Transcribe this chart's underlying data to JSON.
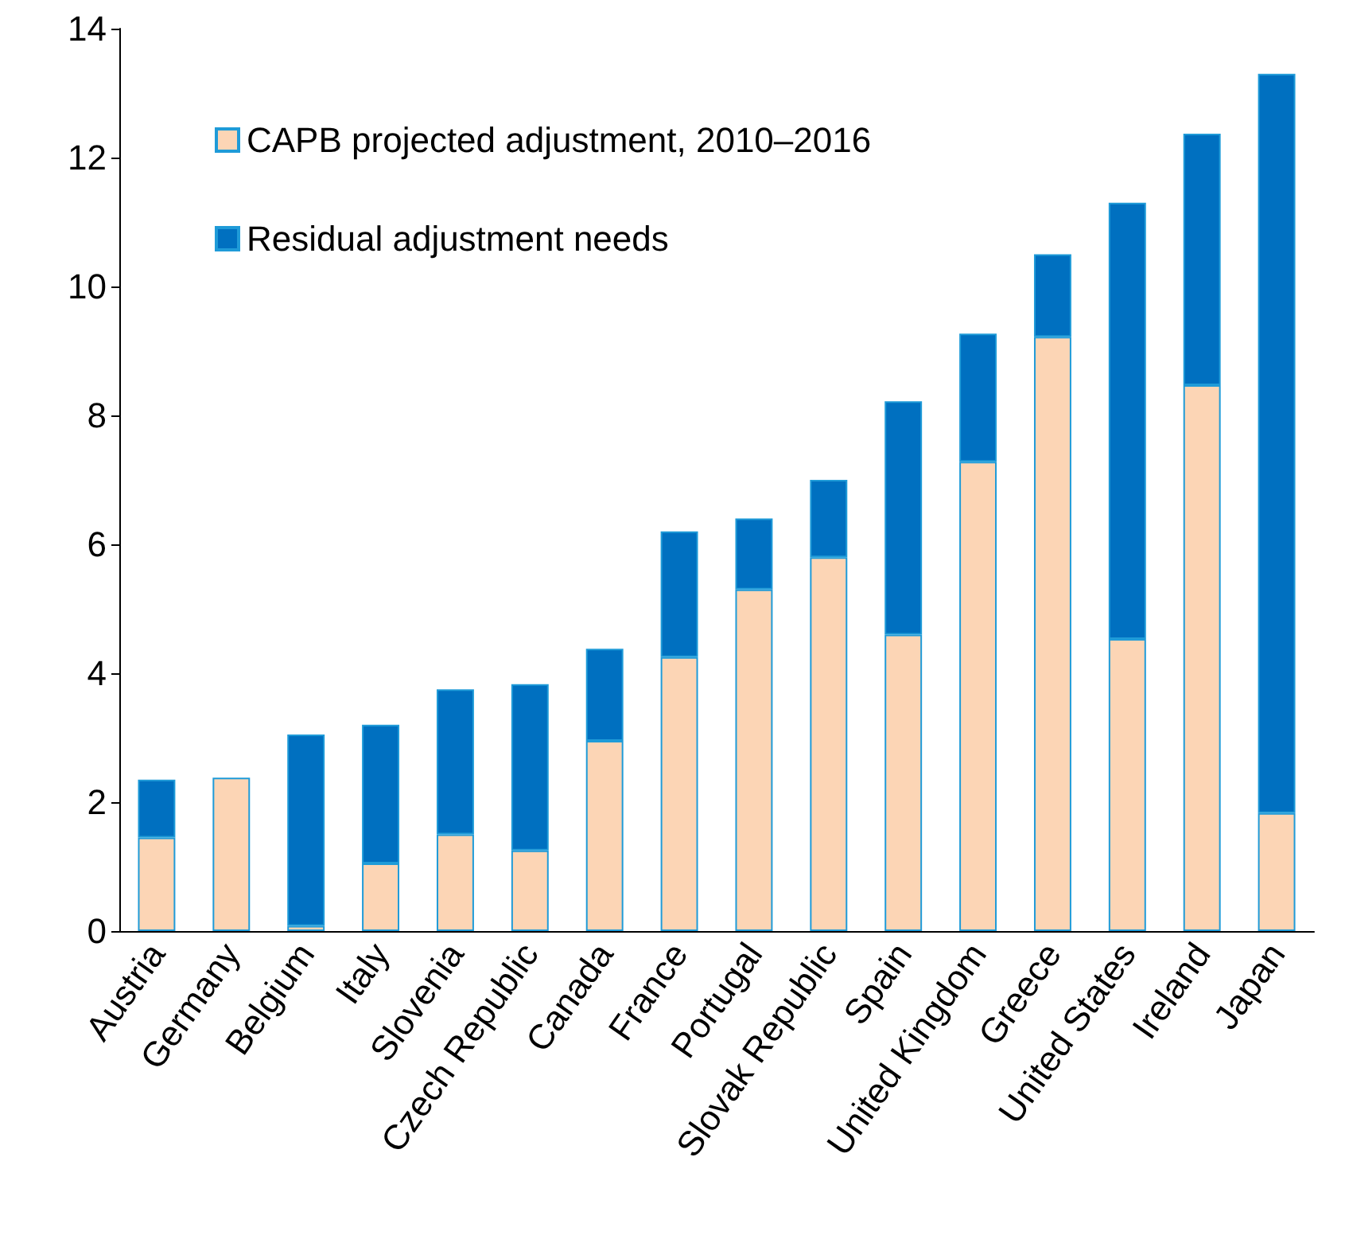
{
  "chart_data": {
    "type": "bar",
    "stacked": true,
    "categories": [
      "Austria",
      "Germany",
      "Belgium",
      "Italy",
      "Slovenia",
      "Czech Republic",
      "Canada",
      "France",
      "Portugal",
      "Slovak Republic",
      "Spain",
      "United Kingdom",
      "Greece",
      "United States",
      "Ireland",
      "Japan"
    ],
    "series": [
      {
        "name": "CAPB projected adjustment, 2010–2016",
        "color": "#fcd5b5",
        "values": [
          1.45,
          2.38,
          0.08,
          1.05,
          1.5,
          1.25,
          2.95,
          4.25,
          5.3,
          5.8,
          4.6,
          7.28,
          9.22,
          4.53,
          8.47,
          1.83
        ]
      },
      {
        "name": "Residual adjustment needs",
        "color": "#0070c0",
        "values": [
          0.9,
          null,
          2.97,
          2.15,
          2.25,
          2.58,
          1.43,
          1.95,
          1.1,
          1.2,
          3.62,
          1.99,
          1.28,
          6.77,
          3.9,
          11.47
        ]
      }
    ],
    "ylim": [
      0,
      14
    ],
    "yticks": [
      0,
      2,
      4,
      6,
      8,
      10,
      12,
      14
    ],
    "grid": false,
    "legend": "top left"
  }
}
